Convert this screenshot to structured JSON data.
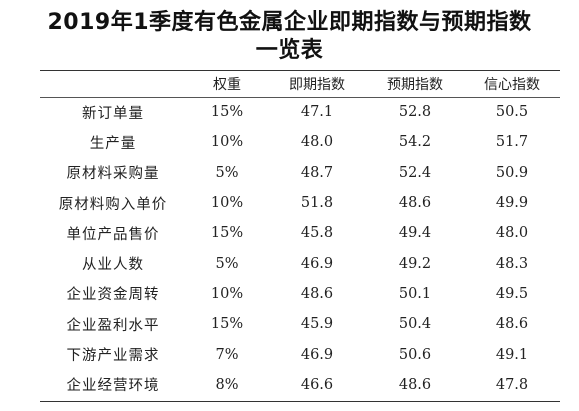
{
  "title": {
    "line1": "2019年1季度有色金属企业即期指数与预期指数",
    "line2": "一览表"
  },
  "table": {
    "headers": [
      "",
      "权重",
      "即期指数",
      "预期指数",
      "信心指数"
    ],
    "rows": [
      {
        "name": "新订单量",
        "weight": "15%",
        "current": "47.1",
        "expected": "52.8",
        "confidence": "50.5"
      },
      {
        "name": "生产量",
        "weight": "10%",
        "current": "48.0",
        "expected": "54.2",
        "confidence": "51.7"
      },
      {
        "name": "原材料采购量",
        "weight": "5%",
        "current": "48.7",
        "expected": "52.4",
        "confidence": "50.9"
      },
      {
        "name": "原材料购入单价",
        "weight": "10%",
        "current": "51.8",
        "expected": "48.6",
        "confidence": "49.9"
      },
      {
        "name": "单位产品售价",
        "weight": "15%",
        "current": "45.8",
        "expected": "49.4",
        "confidence": "48.0"
      },
      {
        "name": "从业人数",
        "weight": "5%",
        "current": "46.9",
        "expected": "49.2",
        "confidence": "48.3"
      },
      {
        "name": "企业资金周转",
        "weight": "10%",
        "current": "48.6",
        "expected": "50.1",
        "confidence": "49.5"
      },
      {
        "name": "企业盈利水平",
        "weight": "15%",
        "current": "45.9",
        "expected": "50.4",
        "confidence": "48.6"
      },
      {
        "name": "下游产业需求",
        "weight": "7%",
        "current": "46.9",
        "expected": "50.6",
        "confidence": "49.1"
      },
      {
        "name": "企业经营环境",
        "weight": "8%",
        "current": "46.6",
        "expected": "48.6",
        "confidence": "47.8"
      }
    ]
  }
}
